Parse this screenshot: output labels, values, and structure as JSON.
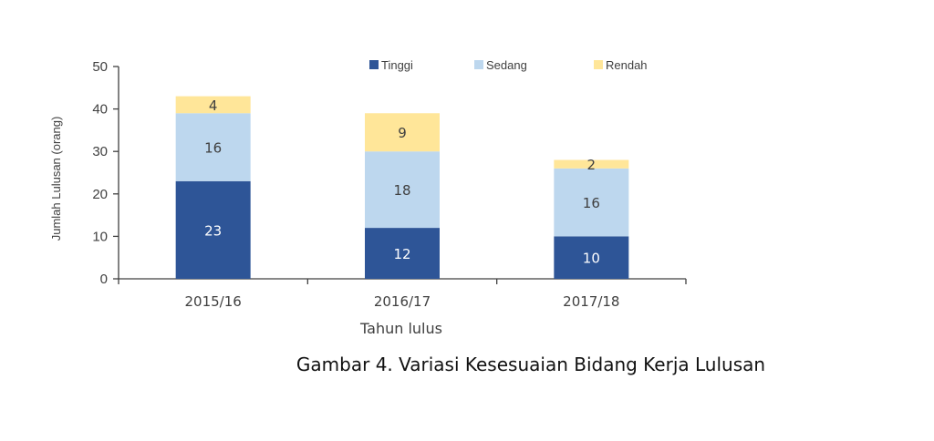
{
  "caption": "Gambar 4. Variasi Kesesuaian Bidang Kerja Lulusan",
  "chart_data": {
    "type": "bar",
    "stacked": true,
    "categories": [
      "2015/16",
      "2016/17",
      "2017/18"
    ],
    "series": [
      {
        "name": "Tinggi",
        "values": [
          23,
          12,
          10
        ],
        "color": "#2e5597",
        "label_color": "#ffffff"
      },
      {
        "name": "Sedang",
        "values": [
          16,
          18,
          16
        ],
        "color": "#bdd7ee",
        "label_color": "#404040"
      },
      {
        "name": "Rendah",
        "values": [
          4,
          9,
          2
        ],
        "color": "#ffe699",
        "label_color": "#404040"
      }
    ],
    "xlabel": "Tahun lulus",
    "ylabel": "Jumlah Lulusan (orang)",
    "ylim": [
      0,
      50
    ],
    "yticks": [
      0,
      10,
      20,
      30,
      40,
      50
    ],
    "legend_position": "top",
    "grid": false
  }
}
